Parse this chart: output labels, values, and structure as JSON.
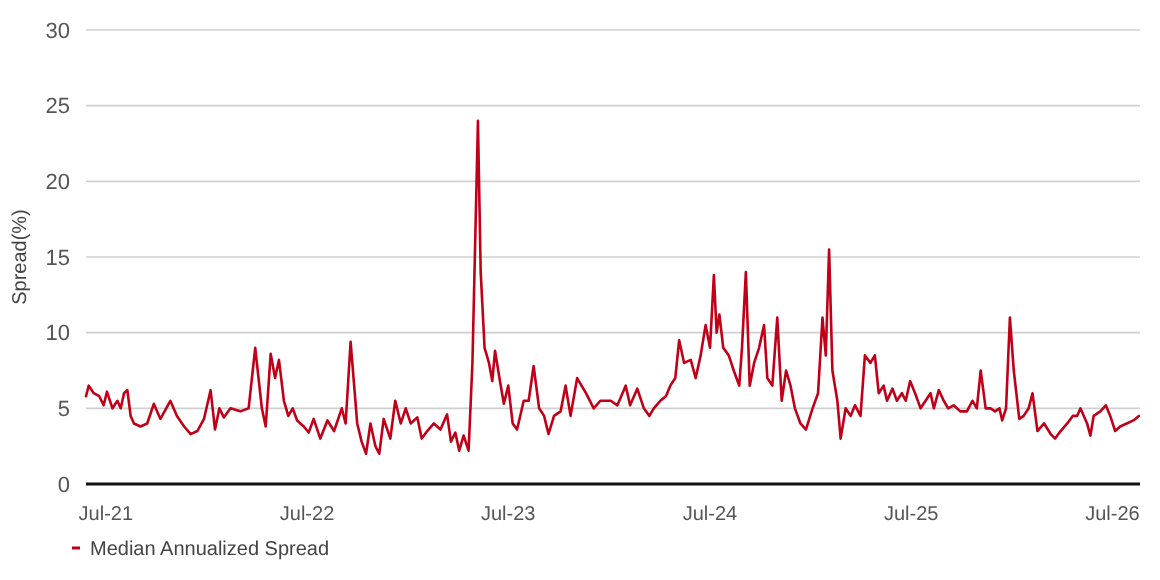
{
  "chart_data": {
    "type": "line",
    "ylabel": "Spread(%)",
    "ylim": [
      0,
      30
    ],
    "yticks": [
      0,
      5,
      10,
      15,
      20,
      25,
      30
    ],
    "xlim": [
      "2021-05-26",
      "2026-08-20"
    ],
    "xticks": [
      {
        "value": "2021-07-01",
        "label": "Jul-21"
      },
      {
        "value": "2022-07-01",
        "label": "Jul-22"
      },
      {
        "value": "2023-07-01",
        "label": "Jul-23"
      },
      {
        "value": "2024-07-01",
        "label": "Jul-24"
      },
      {
        "value": "2025-07-01",
        "label": "Jul-25"
      },
      {
        "value": "2026-07-01",
        "label": "Jul-26"
      }
    ],
    "grid": "y",
    "legend": "bottom",
    "marker": "none",
    "line_style": "solid",
    "x": [
      "2021-05-26",
      "2021-05-31",
      "2021-06-09",
      "2021-06-19",
      "2021-06-27",
      "2021-07-03",
      "2021-07-13",
      "2021-07-22",
      "2021-07-28",
      "2021-08-03",
      "2021-08-09",
      "2021-08-15",
      "2021-08-21",
      "2021-09-02",
      "2021-09-14",
      "2021-09-26",
      "2021-10-08",
      "2021-10-26",
      "2021-11-07",
      "2021-11-20",
      "2021-12-02",
      "2021-12-14",
      "2021-12-26",
      "2022-01-07",
      "2022-01-15",
      "2022-01-23",
      "2022-01-31",
      "2022-02-12",
      "2022-03-02",
      "2022-03-17",
      "2022-03-29",
      "2022-04-10",
      "2022-04-17",
      "2022-04-26",
      "2022-05-04",
      "2022-05-11",
      "2022-05-20",
      "2022-05-28",
      "2022-06-05",
      "2022-06-13",
      "2022-06-25",
      "2022-07-04",
      "2022-07-13",
      "2022-07-25",
      "2022-08-07",
      "2022-08-19",
      "2022-09-02",
      "2022-09-09",
      "2022-09-18",
      "2022-09-30",
      "2022-10-08",
      "2022-10-16",
      "2022-10-24",
      "2022-11-02",
      "2022-11-09",
      "2022-11-17",
      "2022-11-29",
      "2022-12-08",
      "2022-12-18",
      "2022-12-27",
      "2023-01-05",
      "2023-01-17",
      "2023-01-25",
      "2023-02-04",
      "2023-02-16",
      "2023-02-28",
      "2023-03-12",
      "2023-03-19",
      "2023-03-27",
      "2023-04-03",
      "2023-04-11",
      "2023-04-20",
      "2023-04-27",
      "2023-05-07",
      "2023-05-12",
      "2023-05-19",
      "2023-05-27",
      "2023-06-02",
      "2023-06-07",
      "2023-06-15",
      "2023-06-23",
      "2023-07-01",
      "2023-07-09",
      "2023-07-17",
      "2023-07-29",
      "2023-08-07",
      "2023-08-16",
      "2023-08-26",
      "2023-09-04",
      "2023-09-12",
      "2023-09-22",
      "2023-10-04",
      "2023-10-13",
      "2023-10-22",
      "2023-11-03",
      "2023-11-19",
      "2023-12-03",
      "2023-12-15",
      "2024-01-03",
      "2024-01-15",
      "2024-01-30",
      "2024-02-07",
      "2024-02-20",
      "2024-03-03",
      "2024-03-13",
      "2024-03-21",
      "2024-04-02",
      "2024-04-12",
      "2024-04-20",
      "2024-04-29",
      "2024-05-06",
      "2024-05-15",
      "2024-05-27",
      "2024-06-05",
      "2024-06-14",
      "2024-06-23",
      "2024-07-01",
      "2024-07-08",
      "2024-07-13",
      "2024-07-18",
      "2024-07-25",
      "2024-08-04",
      "2024-08-13",
      "2024-08-23",
      "2024-08-28",
      "2024-09-04",
      "2024-09-11",
      "2024-09-19",
      "2024-09-28",
      "2024-10-07",
      "2024-10-13",
      "2024-10-22",
      "2024-10-31",
      "2024-11-08",
      "2024-11-16",
      "2024-11-24",
      "2024-12-02",
      "2024-12-12",
      "2024-12-22",
      "2025-01-03",
      "2025-01-13",
      "2025-01-21",
      "2025-01-27",
      "2025-02-02",
      "2025-02-08",
      "2025-02-17",
      "2025-02-23",
      "2025-03-04",
      "2025-03-13",
      "2025-03-21",
      "2025-03-31",
      "2025-04-08",
      "2025-04-18",
      "2025-04-26",
      "2025-05-03",
      "2025-05-12",
      "2025-05-18",
      "2025-05-28",
      "2025-06-05",
      "2025-06-14",
      "2025-06-21",
      "2025-06-29",
      "2025-07-08",
      "2025-07-18",
      "2025-07-27",
      "2025-08-05",
      "2025-08-11",
      "2025-08-20",
      "2025-08-29",
      "2025-09-06",
      "2025-09-16",
      "2025-09-28",
      "2025-10-10",
      "2025-10-20",
      "2025-10-28",
      "2025-11-04",
      "2025-11-13",
      "2025-11-22",
      "2025-11-30",
      "2025-12-08",
      "2025-12-13",
      "2025-12-20",
      "2025-12-27",
      "2026-01-03",
      "2026-01-13",
      "2026-01-21",
      "2026-01-30",
      "2026-02-06",
      "2026-02-15",
      "2026-02-27",
      "2026-03-11",
      "2026-03-19",
      "2026-03-29",
      "2026-04-10",
      "2026-04-20",
      "2026-04-28",
      "2026-05-04",
      "2026-05-16",
      "2026-05-22",
      "2026-05-28",
      "2026-06-09",
      "2026-06-19",
      "2026-06-27",
      "2026-07-06",
      "2026-07-15",
      "2026-07-27",
      "2026-08-08",
      "2026-08-18"
    ],
    "series": [
      {
        "name": "Median Annualized Spread",
        "color": "#c00018",
        "values": [
          5.8,
          6.5,
          6.0,
          5.8,
          5.2,
          6.1,
          5.0,
          5.5,
          5.0,
          6.0,
          6.2,
          4.5,
          4.0,
          3.8,
          4.0,
          5.3,
          4.3,
          5.5,
          4.5,
          3.8,
          3.3,
          3.5,
          4.3,
          6.2,
          3.6,
          5.0,
          4.4,
          5.0,
          4.8,
          5.0,
          9.0,
          5.0,
          3.8,
          8.6,
          7.0,
          8.2,
          5.5,
          4.5,
          5.0,
          4.2,
          3.8,
          3.4,
          4.3,
          3.0,
          4.2,
          3.5,
          5.0,
          4.0,
          9.4,
          4.0,
          2.8,
          2.0,
          4.0,
          2.5,
          2.0,
          4.3,
          3.0,
          5.5,
          4.0,
          5.0,
          4.0,
          4.4,
          3.0,
          3.5,
          4.0,
          3.6,
          4.6,
          2.8,
          3.4,
          2.2,
          3.2,
          2.2,
          8.0,
          24.0,
          14.0,
          9.0,
          8.0,
          6.8,
          8.8,
          7.0,
          5.3,
          6.5,
          4.0,
          3.6,
          5.5,
          5.5,
          7.8,
          5.0,
          4.5,
          3.3,
          4.5,
          4.8,
          6.5,
          4.5,
          7.0,
          6.0,
          5.0,
          5.5,
          5.5,
          5.2,
          6.5,
          5.2,
          6.3,
          5.0,
          4.5,
          5.0,
          5.5,
          5.8,
          6.5,
          7.0,
          9.5,
          8.0,
          8.2,
          7.0,
          8.5,
          10.5,
          9.0,
          13.8,
          10.0,
          11.2,
          9.0,
          8.5,
          7.5,
          6.5,
          9.0,
          14.0,
          6.5,
          8.0,
          9.0,
          10.5,
          7.0,
          6.5,
          11.0,
          5.5,
          7.5,
          6.5,
          5.0,
          4.0,
          3.6,
          5.0,
          6.0,
          11.0,
          8.5,
          15.5,
          7.5,
          5.5,
          3.0,
          5.0,
          4.5,
          5.2,
          4.5,
          8.5,
          8.0,
          8.5,
          6.0,
          6.5,
          5.5,
          6.3,
          5.5,
          6.0,
          5.5,
          6.8,
          6.0,
          5.0,
          5.5,
          6.0,
          5.0,
          6.2,
          5.5,
          5.0,
          5.2,
          4.8,
          4.8,
          5.5,
          5.0,
          7.5,
          5.0,
          5.0,
          4.8,
          5.0,
          4.2,
          5.0,
          11.0,
          7.5,
          4.3,
          4.5,
          5.0,
          6.0,
          3.5,
          4.0,
          3.3,
          3.0,
          3.5,
          4.0,
          4.5,
          4.5,
          5.0,
          4.0,
          3.2,
          4.5,
          4.8,
          5.2,
          4.5,
          3.5,
          3.8,
          4.0,
          4.2,
          4.5
        ]
      }
    ]
  }
}
